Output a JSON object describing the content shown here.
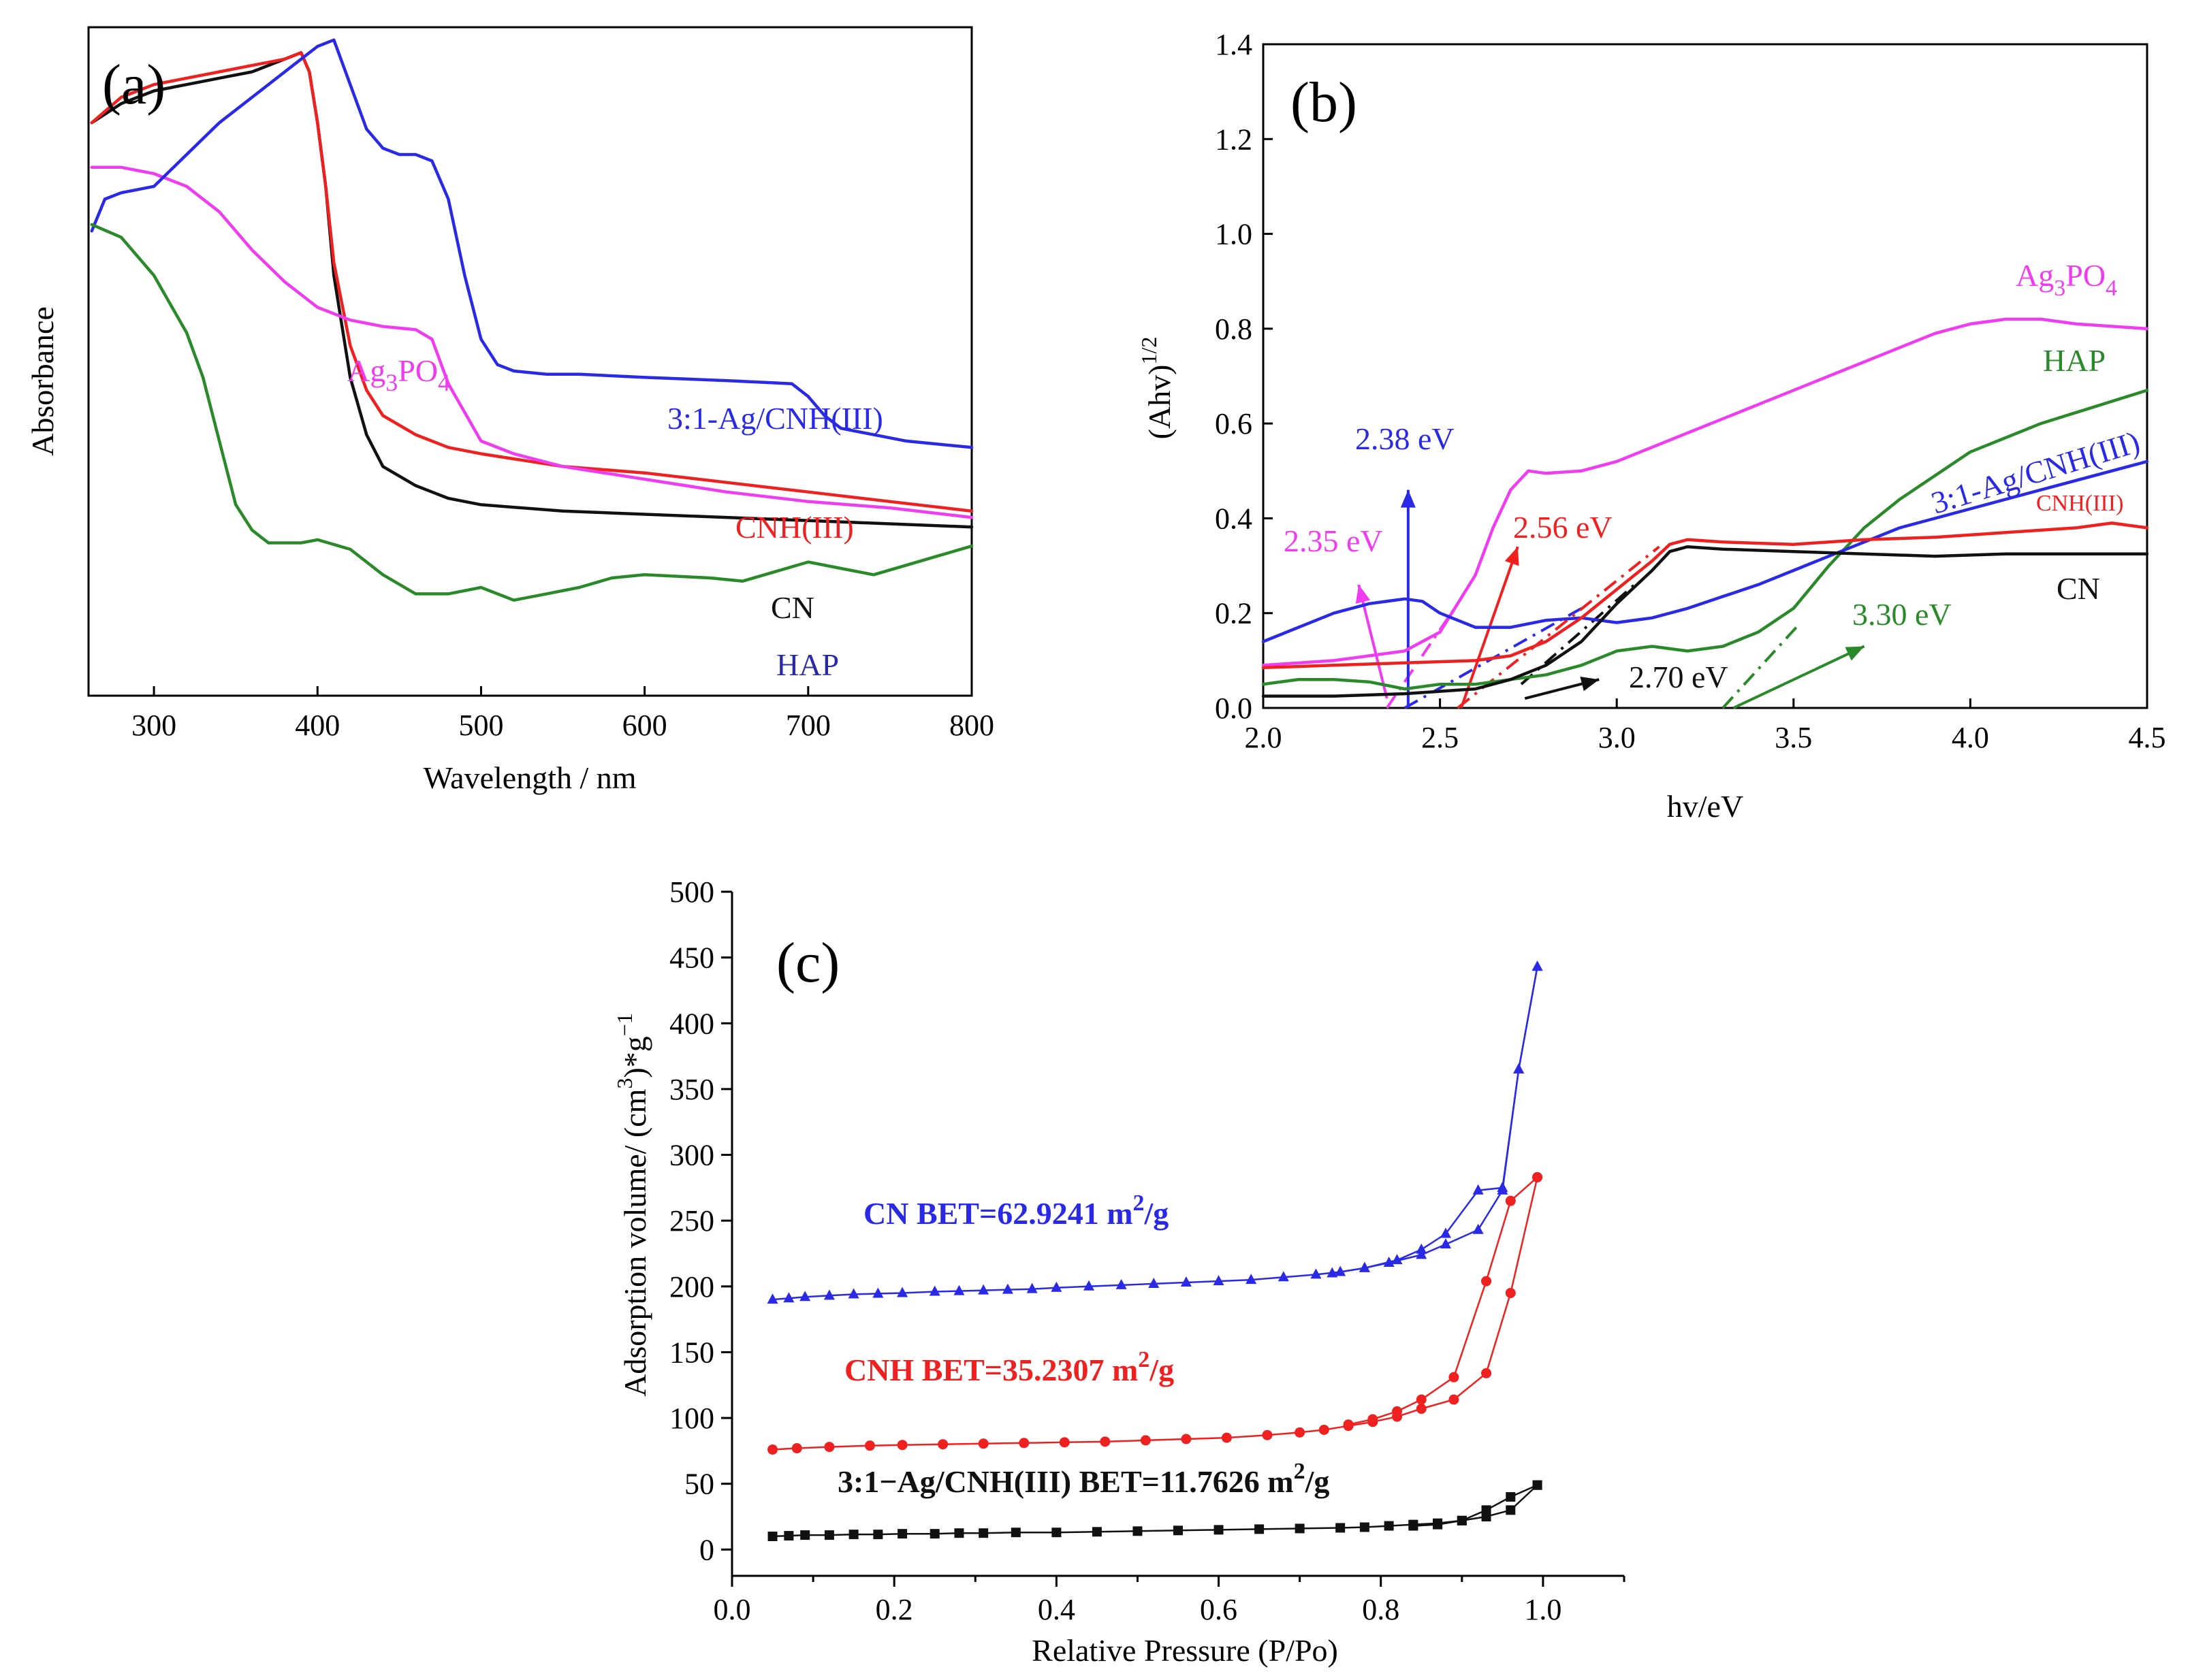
{
  "colors": {
    "black": "#111111",
    "red": "#ef2020",
    "blue": "#2a2ae6",
    "magenta": "#f03cf0",
    "green": "#2a8a2a",
    "navy": "#2a2aa8"
  },
  "chart_data": [
    {
      "panel": "(a)",
      "type": "line",
      "title": "",
      "xlabel": "Wavelength / nm",
      "ylabel": "Absorbance",
      "xlim": [
        260,
        800
      ],
      "ylim": [
        0,
        1.05
      ],
      "xticks": [
        300,
        400,
        500,
        600,
        700,
        800
      ],
      "yticks": [],
      "series": [
        {
          "name": "CN",
          "color": "#111111",
          "x": [
            262,
            280,
            300,
            320,
            340,
            360,
            380,
            390,
            395,
            400,
            405,
            410,
            420,
            430,
            440,
            460,
            480,
            500,
            550,
            600,
            650,
            700,
            750,
            800
          ],
          "y": [
            0.9,
            0.93,
            0.95,
            0.96,
            0.97,
            0.98,
            1.0,
            1.01,
            0.98,
            0.9,
            0.8,
            0.66,
            0.5,
            0.41,
            0.36,
            0.33,
            0.31,
            0.3,
            0.29,
            0.285,
            0.28,
            0.275,
            0.27,
            0.265
          ]
        },
        {
          "name": "CNH(III)",
          "color": "#ef2020",
          "x": [
            262,
            280,
            300,
            320,
            340,
            360,
            380,
            390,
            395,
            400,
            405,
            410,
            420,
            430,
            440,
            460,
            480,
            500,
            550,
            600,
            650,
            700,
            750,
            800
          ],
          "y": [
            0.9,
            0.94,
            0.96,
            0.97,
            0.98,
            0.99,
            1.0,
            1.01,
            0.98,
            0.9,
            0.8,
            0.68,
            0.55,
            0.48,
            0.44,
            0.41,
            0.39,
            0.38,
            0.36,
            0.35,
            0.335,
            0.32,
            0.305,
            0.29
          ]
        },
        {
          "name": "Ag3PO4",
          "color": "#f03cf0",
          "x": [
            262,
            280,
            300,
            320,
            340,
            360,
            380,
            400,
            420,
            440,
            460,
            470,
            480,
            500,
            520,
            550,
            600,
            650,
            700,
            750,
            800
          ],
          "y": [
            0.83,
            0.83,
            0.82,
            0.8,
            0.76,
            0.7,
            0.65,
            0.61,
            0.59,
            0.58,
            0.575,
            0.56,
            0.49,
            0.4,
            0.38,
            0.36,
            0.34,
            0.32,
            0.305,
            0.295,
            0.28
          ]
        },
        {
          "name": "3:1-Ag/CNH(III)",
          "color": "#2a2ae6",
          "x": [
            262,
            270,
            280,
            300,
            320,
            340,
            360,
            380,
            390,
            400,
            410,
            420,
            430,
            440,
            450,
            460,
            470,
            480,
            490,
            500,
            510,
            520,
            540,
            560,
            600,
            650,
            690,
            700,
            710,
            720,
            740,
            760,
            800
          ],
          "y": [
            0.73,
            0.78,
            0.79,
            0.8,
            0.85,
            0.9,
            0.94,
            0.98,
            1.0,
            1.02,
            1.03,
            0.96,
            0.89,
            0.86,
            0.85,
            0.85,
            0.84,
            0.78,
            0.66,
            0.56,
            0.52,
            0.51,
            0.505,
            0.505,
            0.5,
            0.495,
            0.49,
            0.47,
            0.44,
            0.42,
            0.41,
            0.4,
            0.39
          ]
        },
        {
          "name": "HAP",
          "color": "#2a8a2a",
          "x": [
            262,
            280,
            300,
            320,
            330,
            340,
            350,
            360,
            370,
            390,
            400,
            420,
            440,
            460,
            480,
            500,
            520,
            540,
            560,
            580,
            600,
            640,
            660,
            700,
            720,
            740,
            760,
            780,
            800
          ],
          "y": [
            0.74,
            0.72,
            0.66,
            0.57,
            0.5,
            0.4,
            0.3,
            0.26,
            0.24,
            0.24,
            0.245,
            0.23,
            0.19,
            0.16,
            0.16,
            0.17,
            0.15,
            0.16,
            0.17,
            0.185,
            0.19,
            0.185,
            0.18,
            0.21,
            0.2,
            0.19,
            0.205,
            0.22,
            0.235
          ]
        }
      ],
      "labels": [
        "3:1-Ag/CNH(III)",
        "CNH(III)",
        "CN",
        "HAP"
      ],
      "label_ag3po4": {
        "base": "Ag",
        "sub1": "3",
        "mid": "PO",
        "sub2": "4"
      }
    },
    {
      "panel": "(b)",
      "type": "line",
      "title": "",
      "xlabel": "hv/eV",
      "ylabel_base": "(Ahv)",
      "ylabel_sup": "1/2",
      "xlim": [
        2.0,
        4.5
      ],
      "ylim": [
        0.0,
        1.4
      ],
      "xticks": [
        "2.0",
        "2.5",
        "3.0",
        "3.5",
        "4.0",
        "4.5"
      ],
      "yticks": [
        "0.0",
        "0.2",
        "0.4",
        "0.6",
        "0.8",
        "1.0",
        "1.2",
        "1.4"
      ],
      "series": [
        {
          "name": "Ag3PO4",
          "color": "#f03cf0",
          "x": [
            2.0,
            2.2,
            2.4,
            2.5,
            2.6,
            2.65,
            2.7,
            2.75,
            2.8,
            2.9,
            3.0,
            3.2,
            3.4,
            3.6,
            3.8,
            3.9,
            4.0,
            4.1,
            4.2,
            4.3,
            4.5
          ],
          "y": [
            0.09,
            0.1,
            0.12,
            0.16,
            0.28,
            0.38,
            0.46,
            0.5,
            0.495,
            0.5,
            0.52,
            0.58,
            0.64,
            0.7,
            0.76,
            0.79,
            0.81,
            0.82,
            0.82,
            0.81,
            0.8
          ]
        },
        {
          "name": "HAP",
          "color": "#2a8a2a",
          "x": [
            2.0,
            2.1,
            2.2,
            2.3,
            2.4,
            2.5,
            2.6,
            2.7,
            2.8,
            2.9,
            3.0,
            3.1,
            3.2,
            3.3,
            3.4,
            3.5,
            3.6,
            3.7,
            3.8,
            3.9,
            4.0,
            4.2,
            4.5
          ],
          "y": [
            0.05,
            0.06,
            0.06,
            0.055,
            0.04,
            0.05,
            0.05,
            0.06,
            0.07,
            0.09,
            0.12,
            0.13,
            0.12,
            0.13,
            0.16,
            0.21,
            0.3,
            0.38,
            0.44,
            0.49,
            0.54,
            0.6,
            0.67
          ]
        },
        {
          "name": "3:1-Ag/CNH(III)",
          "color": "#2a2ae6",
          "x": [
            2.0,
            2.1,
            2.2,
            2.3,
            2.4,
            2.45,
            2.5,
            2.6,
            2.7,
            2.8,
            2.9,
            3.0,
            3.1,
            3.2,
            3.3,
            3.4,
            3.5,
            3.6,
            3.7,
            3.8,
            4.0,
            4.2,
            4.5
          ],
          "y": [
            0.14,
            0.17,
            0.2,
            0.22,
            0.23,
            0.225,
            0.2,
            0.17,
            0.17,
            0.185,
            0.19,
            0.18,
            0.19,
            0.21,
            0.235,
            0.26,
            0.29,
            0.32,
            0.35,
            0.38,
            0.42,
            0.46,
            0.52
          ]
        },
        {
          "name": "CNH(III)",
          "color": "#ef2020",
          "x": [
            2.0,
            2.2,
            2.4,
            2.6,
            2.7,
            2.8,
            2.9,
            3.0,
            3.1,
            3.15,
            3.2,
            3.3,
            3.5,
            3.7,
            3.9,
            4.1,
            4.3,
            4.4,
            4.5
          ],
          "y": [
            0.085,
            0.09,
            0.095,
            0.1,
            0.11,
            0.14,
            0.19,
            0.25,
            0.31,
            0.345,
            0.355,
            0.35,
            0.345,
            0.355,
            0.36,
            0.37,
            0.38,
            0.39,
            0.38
          ]
        },
        {
          "name": "CN",
          "color": "#111111",
          "x": [
            2.0,
            2.2,
            2.4,
            2.6,
            2.7,
            2.8,
            2.9,
            3.0,
            3.1,
            3.15,
            3.2,
            3.3,
            3.5,
            3.7,
            3.9,
            4.1,
            4.3,
            4.5
          ],
          "y": [
            0.025,
            0.025,
            0.03,
            0.04,
            0.06,
            0.09,
            0.14,
            0.22,
            0.29,
            0.33,
            0.34,
            0.335,
            0.33,
            0.325,
            0.32,
            0.325,
            0.325,
            0.325
          ]
        }
      ],
      "annotations": [
        {
          "text": "2.38 eV",
          "color": "#2a2ae6"
        },
        {
          "text": "2.35 eV",
          "color": "#f03cf0"
        },
        {
          "text": "2.56 eV",
          "color": "#ef2020"
        },
        {
          "text": "2.70 eV",
          "color": "#111111"
        },
        {
          "text": "3.30 eV",
          "color": "#2a8a2a"
        }
      ],
      "labels": [
        "HAP",
        "3:1-Ag/CNH(III)",
        "CNH(III)",
        "CN"
      ],
      "label_ag3po4": {
        "base": "Ag",
        "sub1": "3",
        "mid": "PO",
        "sub2": "4"
      }
    },
    {
      "panel": "(c)",
      "type": "scatter",
      "title": "",
      "xlabel": "Relative Pressure (P/Po)",
      "ylabel_a": "Adsorption volume/ (cm",
      "ylabel_sup1": "3",
      "ylabel_b": ")*g",
      "ylabel_sup2": "−1",
      "xlim": [
        0.0,
        1.1
      ],
      "ylim": [
        -20,
        500
      ],
      "xticks": [
        "0.0",
        "0.2",
        "0.4",
        "0.6",
        "0.8",
        "1.0"
      ],
      "yticks": [
        "0",
        "50",
        "100",
        "150",
        "200",
        "250",
        "300",
        "350",
        "400",
        "450",
        "500"
      ],
      "series": [
        {
          "name": "CN",
          "marker": "triangle",
          "color": "#2a2ae6",
          "ads_x": [
            0.05,
            0.07,
            0.09,
            0.12,
            0.15,
            0.18,
            0.21,
            0.25,
            0.28,
            0.31,
            0.34,
            0.37,
            0.4,
            0.44,
            0.48,
            0.52,
            0.56,
            0.6,
            0.64,
            0.68,
            0.72,
            0.75,
            0.78,
            0.81,
            0.85,
            0.88,
            0.92,
            0.95,
            0.97,
            0.993
          ],
          "ads_y": [
            190,
            191,
            192,
            193,
            194,
            194.5,
            195,
            196,
            196.5,
            197,
            197.5,
            198,
            199,
            200,
            201,
            202,
            203,
            204,
            205,
            207,
            209,
            211,
            214,
            218,
            224,
            232,
            243,
            273,
            365,
            443
          ],
          "des_x": [
            0.993,
            0.97,
            0.95,
            0.92,
            0.88,
            0.85,
            0.82,
            0.78,
            0.74
          ],
          "des_y": [
            443,
            365,
            275,
            273,
            240,
            228,
            220,
            214,
            210
          ],
          "label_main": "CN  BET=62.9241 m",
          "label_sup": "2",
          "label_end": "/g"
        },
        {
          "name": "CNH",
          "marker": "circle",
          "color": "#ef2020",
          "ads_x": [
            0.05,
            0.08,
            0.12,
            0.17,
            0.21,
            0.26,
            0.31,
            0.36,
            0.41,
            0.46,
            0.51,
            0.56,
            0.61,
            0.66,
            0.7,
            0.73,
            0.76,
            0.79,
            0.82,
            0.85,
            0.89,
            0.93,
            0.96,
            0.993
          ],
          "ads_y": [
            76,
            77,
            78,
            79,
            79.5,
            80,
            80.5,
            81,
            81.5,
            82,
            83,
            84,
            85,
            87,
            89,
            91,
            94,
            97,
            101,
            107,
            114,
            134,
            195,
            283
          ],
          "des_x": [
            0.993,
            0.96,
            0.93,
            0.89,
            0.85,
            0.82,
            0.79,
            0.76
          ],
          "des_y": [
            283,
            265,
            204,
            131,
            114,
            105,
            99,
            95
          ],
          "label_main": "CNH  BET=35.2307 m",
          "label_sup": "2",
          "label_end": "/g"
        },
        {
          "name": "3:1-Ag/CNH(III)",
          "marker": "square",
          "color": "#111111",
          "ads_x": [
            0.05,
            0.07,
            0.09,
            0.12,
            0.15,
            0.18,
            0.21,
            0.25,
            0.28,
            0.31,
            0.35,
            0.4,
            0.45,
            0.5,
            0.55,
            0.6,
            0.65,
            0.7,
            0.75,
            0.78,
            0.81,
            0.84,
            0.87,
            0.9,
            0.93,
            0.96,
            0.993
          ],
          "ads_y": [
            10,
            10.5,
            11,
            11,
            11.5,
            11.5,
            12,
            12,
            12.5,
            12.5,
            13,
            13,
            13.5,
            14,
            14.5,
            15,
            15.5,
            16,
            16.5,
            17,
            18,
            19,
            20,
            22,
            25,
            30,
            49
          ],
          "des_x": [
            0.993,
            0.96,
            0.93,
            0.9,
            0.87,
            0.84
          ],
          "des_y": [
            49,
            40,
            30,
            22,
            19,
            18
          ],
          "label_main": "3:1−Ag/CNH(III)  BET=11.7626 m",
          "label_sup": "2",
          "label_end": "/g"
        }
      ]
    }
  ]
}
